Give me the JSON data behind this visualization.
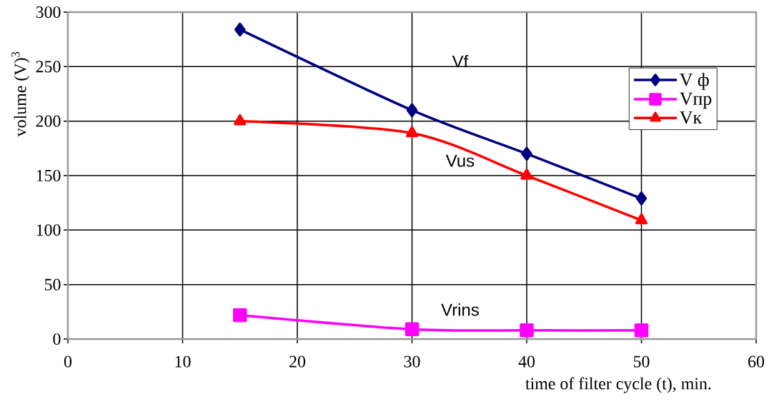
{
  "chart_data": {
    "type": "line",
    "xlabel": "time of filter cycle (t), min.",
    "ylabel": "volume (V)$^{3}$",
    "x": [
      15,
      30,
      40,
      50
    ],
    "series": [
      {
        "name": "V ф",
        "color": "#000080",
        "marker": "diamond",
        "values": [
          284,
          210,
          170,
          129
        ]
      },
      {
        "name": "Vпр",
        "color": "#ff00ff",
        "marker": "square",
        "values": [
          22,
          9,
          8,
          8
        ]
      },
      {
        "name": "Vк",
        "color": "#ff0000",
        "marker": "triangle",
        "values": [
          200,
          189,
          150,
          109
        ]
      }
    ],
    "annotations": [
      "Vf",
      "Vus",
      "Vrins"
    ],
    "xlim": [
      0,
      60
    ],
    "xticks": [
      0,
      10,
      20,
      30,
      40,
      50,
      60
    ],
    "ylim": [
      0,
      300
    ],
    "yticks": [
      0,
      50,
      100,
      150,
      200,
      250,
      300
    ],
    "grid": true,
    "legend": "top right",
    "line_style": "solid"
  }
}
